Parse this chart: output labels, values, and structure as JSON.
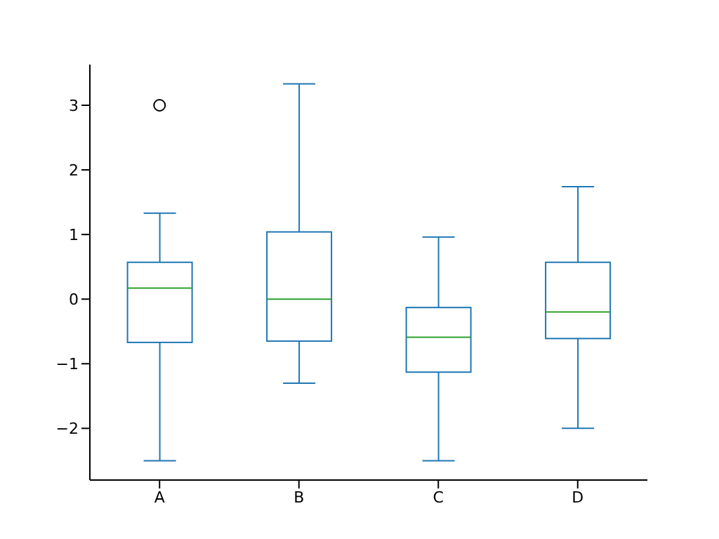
{
  "chart_data": {
    "type": "box",
    "categories": [
      "A",
      "B",
      "C",
      "D"
    ],
    "series": [
      {
        "color": "#1f77b4",
        "boxes": [
          {
            "low": -2.5,
            "q1": -0.67,
            "median": 0.17,
            "q3": 0.57,
            "high": 1.33,
            "outliers": [
              3.0
            ]
          },
          {
            "low": -1.3,
            "q1": -0.65,
            "median": 0.0,
            "q3": 1.04,
            "high": 3.33
          },
          {
            "low": -2.5,
            "q1": -1.13,
            "median": -0.59,
            "q3": -0.13,
            "high": 0.96
          },
          {
            "low": -2.0,
            "q1": -0.61,
            "median": -0.2,
            "q3": 0.57,
            "high": 1.74
          }
        ]
      }
    ],
    "ylim": [
      -2.8,
      3.63
    ],
    "yticks": [
      {
        "value": -2,
        "label": "−2"
      },
      {
        "value": -1,
        "label": "−1"
      },
      0,
      1,
      2,
      3
    ],
    "grid": false
  }
}
